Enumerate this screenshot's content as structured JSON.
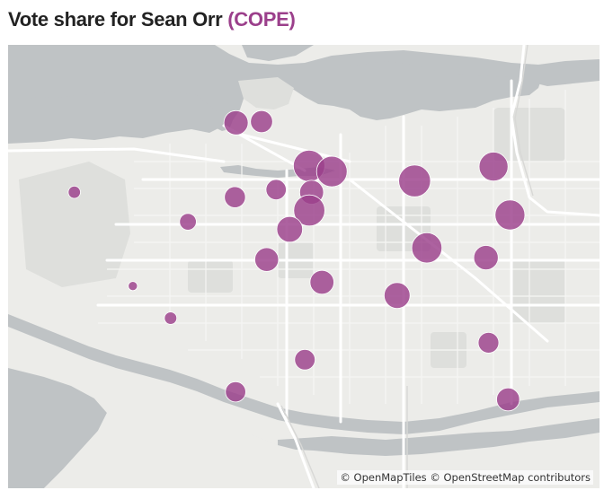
{
  "header": {
    "title_prefix": "Vote share for Sean Orr",
    "party": "(COPE)",
    "party_color": "#9b3f8b"
  },
  "map": {
    "colors": {
      "water": "#bfc3c5",
      "land": "#ecece9",
      "parks": "#dedfdc",
      "roads_major": "#ffffff",
      "roads_minor": "#f6f6f4",
      "marker_fill": "#9b3f8b"
    },
    "markers": [
      {
        "lat": 49.2937,
        "lon": -123.1334,
        "share": 0.7
      },
      {
        "lat": 49.294,
        "lon": -123.1213,
        "share": 0.62
      },
      {
        "lat": 49.2823,
        "lon": -123.0988,
        "share": 0.97
      },
      {
        "lat": 49.2808,
        "lon": -123.088,
        "share": 0.93
      },
      {
        "lat": 49.2783,
        "lon": -123.0488,
        "share": 0.98
      },
      {
        "lat": 49.2821,
        "lon": -123.0114,
        "share": 0.87
      },
      {
        "lat": 49.276,
        "lon": -123.1144,
        "share": 0.55
      },
      {
        "lat": 49.274,
        "lon": -123.1339,
        "share": 0.58
      },
      {
        "lat": 49.2753,
        "lon": -123.0976,
        "share": 0.69
      },
      {
        "lat": 49.2753,
        "lon": -123.21,
        "share": 0.25
      },
      {
        "lat": 49.2705,
        "lon": -123.0987,
        "share": 0.95
      },
      {
        "lat": 49.2693,
        "lon": -123.0036,
        "share": 0.91
      },
      {
        "lat": 49.2675,
        "lon": -123.1562,
        "share": 0.42
      },
      {
        "lat": 49.2655,
        "lon": -123.108,
        "share": 0.75
      },
      {
        "lat": 49.2606,
        "lon": -123.043,
        "share": 0.92
      },
      {
        "lat": 49.2575,
        "lon": -123.1189,
        "share": 0.68
      },
      {
        "lat": 49.258,
        "lon": -123.015,
        "share": 0.71
      },
      {
        "lat": 49.2505,
        "lon": -123.1823,
        "share": 0.14
      },
      {
        "lat": 49.2515,
        "lon": -123.0927,
        "share": 0.69
      },
      {
        "lat": 49.248,
        "lon": -123.0571,
        "share": 0.76
      },
      {
        "lat": 49.242,
        "lon": -123.1644,
        "share": 0.26
      },
      {
        "lat": 49.2355,
        "lon": -123.0138,
        "share": 0.57
      },
      {
        "lat": 49.231,
        "lon": -123.1008,
        "share": 0.56
      },
      {
        "lat": 49.2225,
        "lon": -123.1336,
        "share": 0.55
      },
      {
        "lat": 49.2205,
        "lon": -123.0045,
        "share": 0.65
      }
    ]
  },
  "attribution": {
    "tiles": "© OpenMapTiles",
    "data": "© OpenStreetMap contributors"
  }
}
